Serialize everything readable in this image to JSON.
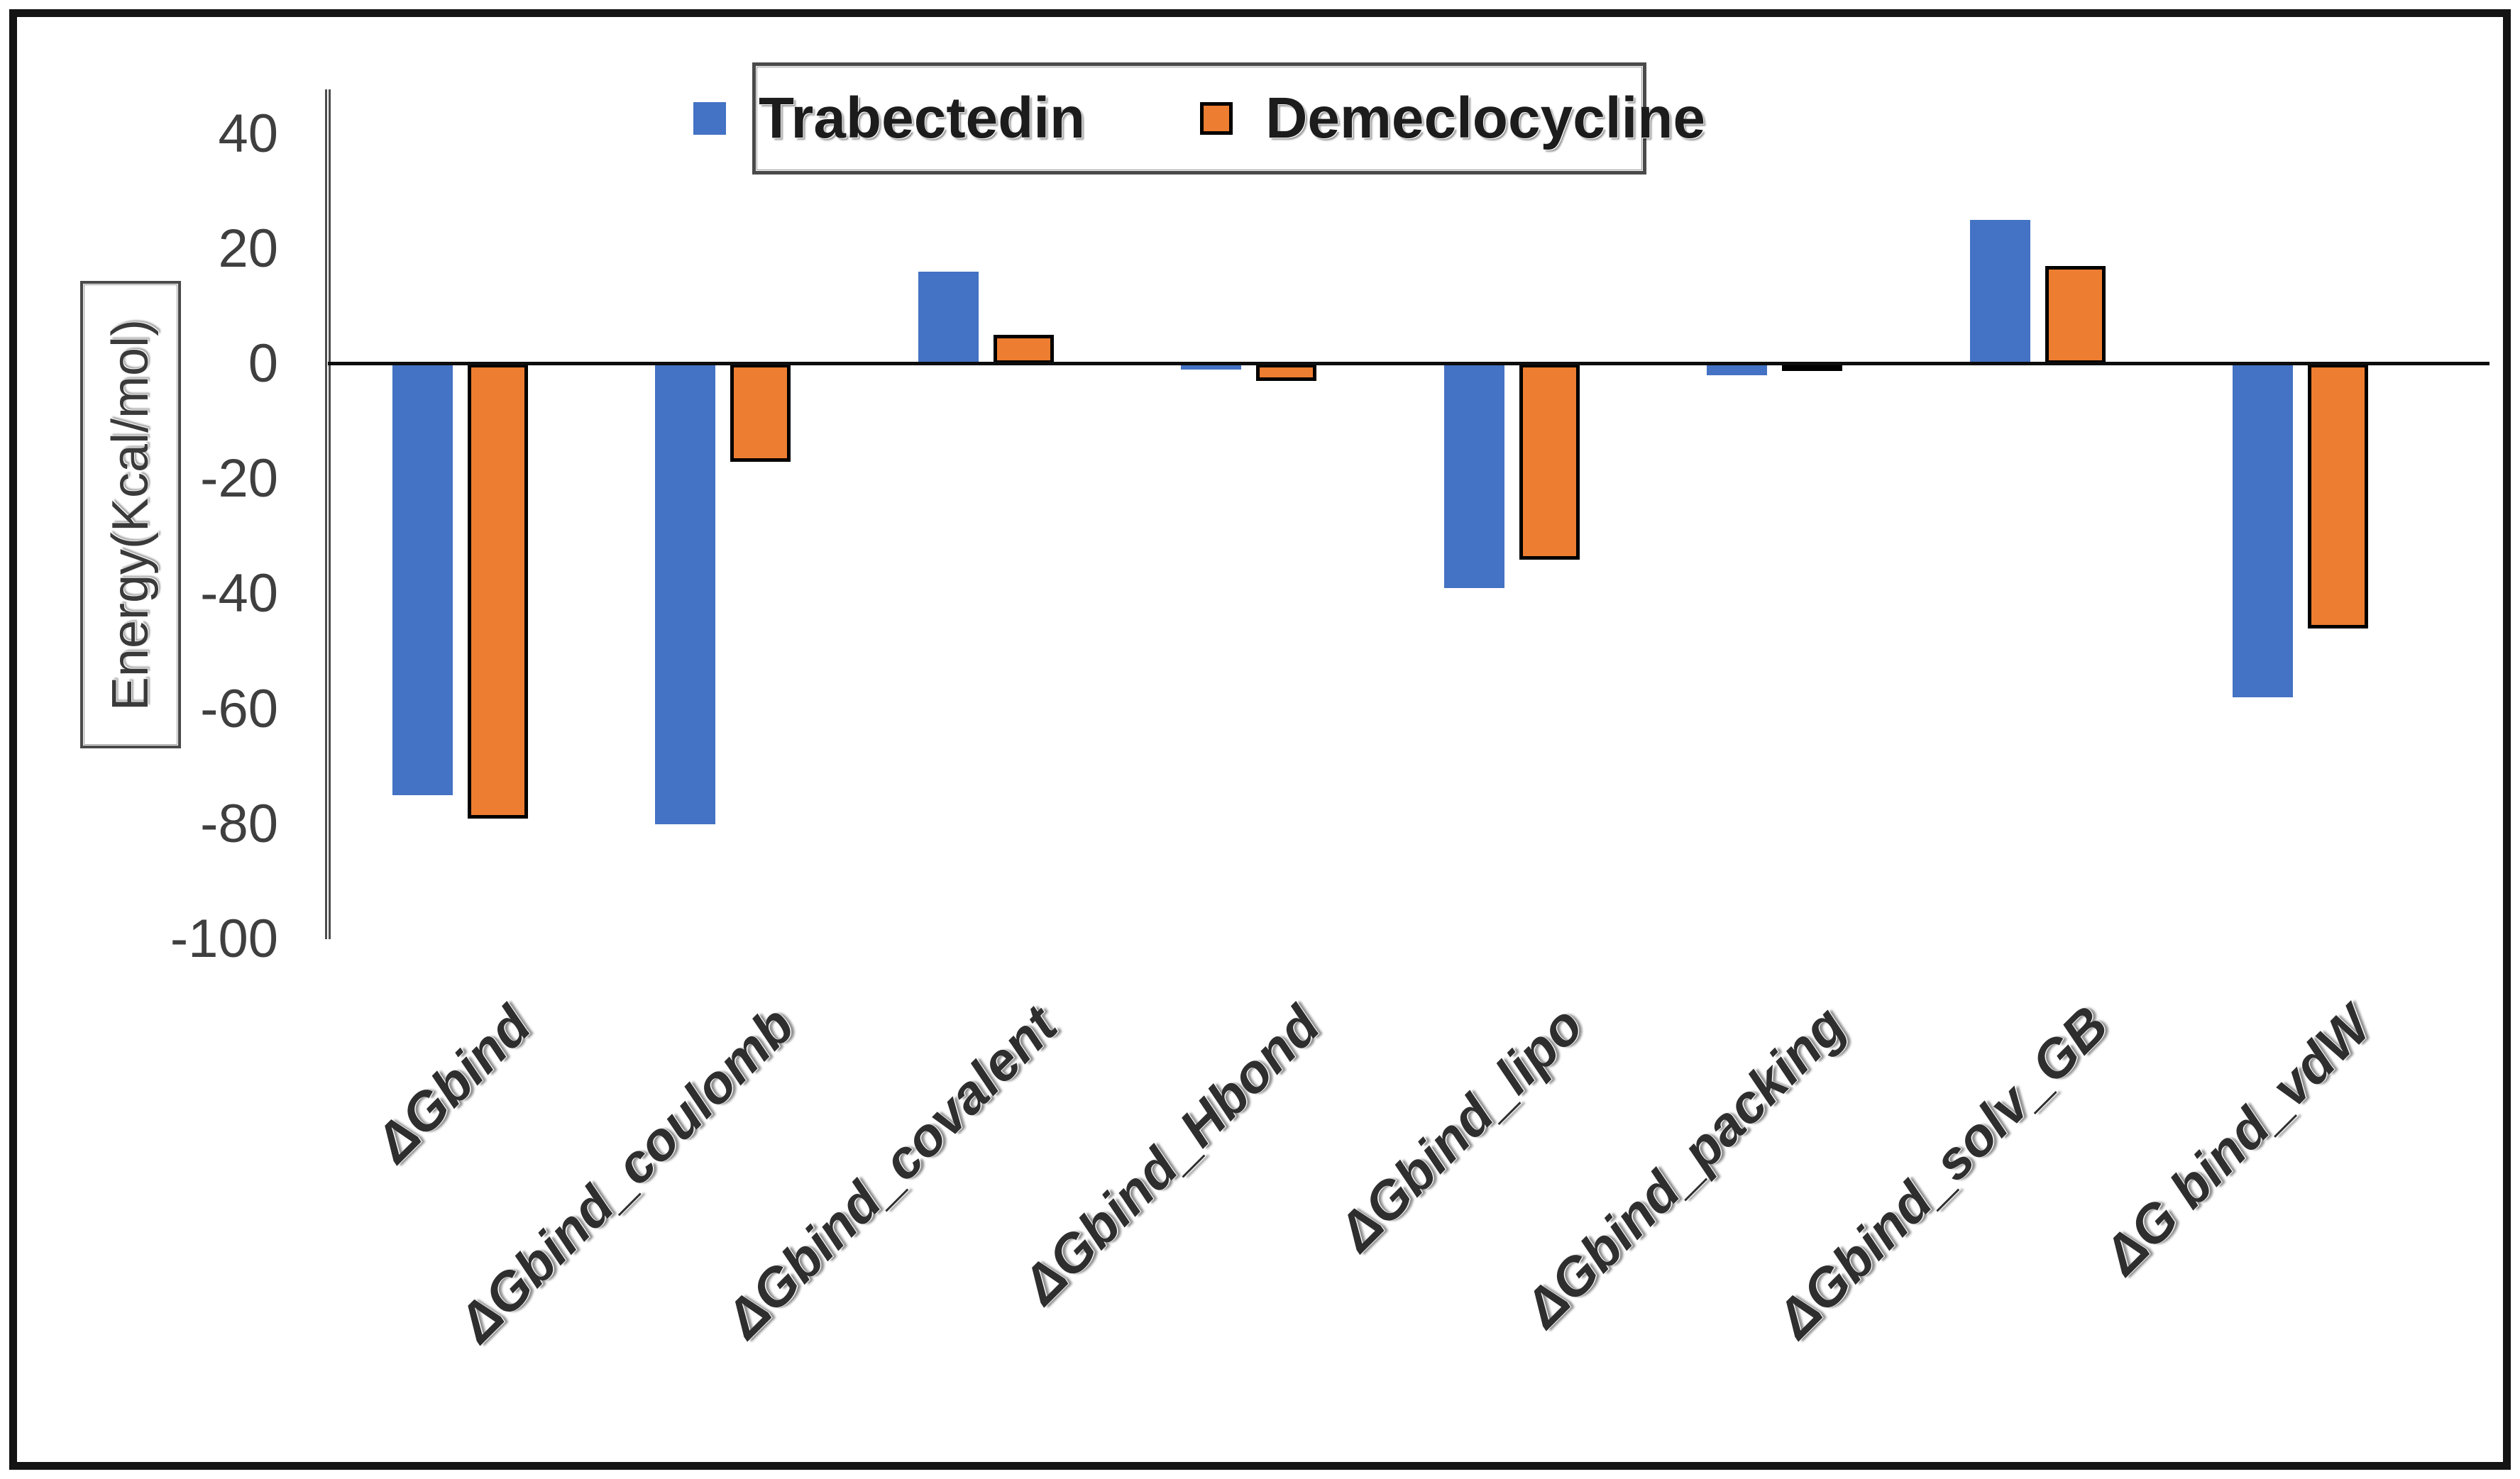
{
  "chart_data": {
    "type": "bar",
    "title": "",
    "ylabel": "Energy(Kcal/mol)",
    "categories": [
      "ΔGbind",
      "ΔGbind_coulomb",
      "ΔGbind_covalent",
      "ΔGbind_Hbond",
      "ΔGbind_lipo",
      "ΔGbind_packing",
      "ΔGbind_solv_GB",
      "ΔG bind_vdW"
    ],
    "series": [
      {
        "name": "Trabectedin",
        "color": "#4472C4",
        "border_color": "none",
        "values": [
          -75,
          -80,
          16,
          -1,
          -39,
          -2,
          25,
          -58
        ]
      },
      {
        "name": "Demeclocycline",
        "color": "#ED7D31",
        "border_color": "#000000",
        "values": [
          -79,
          -17,
          5,
          -3,
          -34,
          -1,
          17,
          -46
        ]
      }
    ],
    "ylim": [
      -100,
      40
    ],
    "yticks": [
      40,
      20,
      0,
      -20,
      -40,
      -60,
      -80,
      -100
    ],
    "legend_position": "top-center",
    "grid": false
  },
  "colors": {
    "frame": "#141414",
    "axis_line": "#4d4d4d",
    "zero_line": "#0d0d0d",
    "tick_text": "#3f3f3f",
    "label_text": "#2e2e2e",
    "background": "#ffffff"
  }
}
